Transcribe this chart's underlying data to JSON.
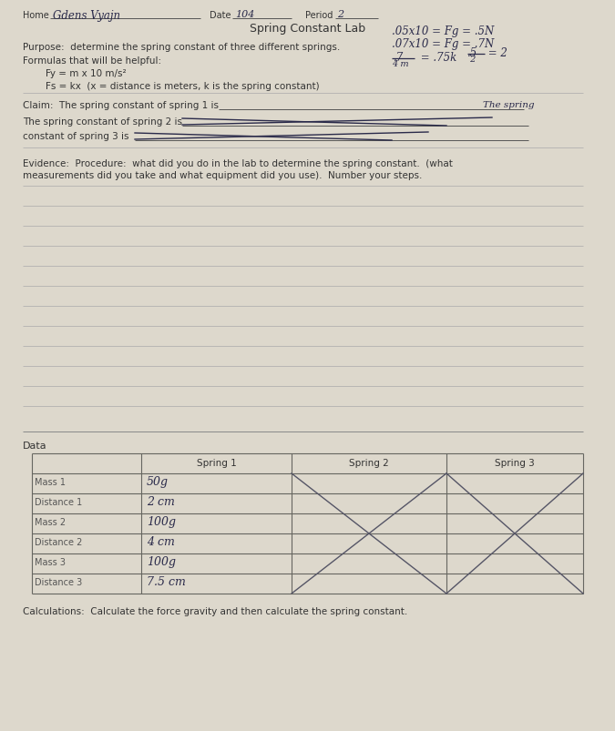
{
  "bg_color": "#ddd8cc",
  "title": "Spring Constant Lab",
  "hw_name": "Gdens Vyajn",
  "hw_date": "104",
  "hw_period": "2",
  "purpose_text": "Purpose:  determine the spring constant of three different springs.",
  "formulas_label": "Formulas that will be helpful:",
  "formula1": "Fy = m x 10 m/s²",
  "formula2": "Fs = kx  (x = distance is meters, k is the spring constant)",
  "claim_line1": "Claim:  The spring constant of spring 1 is",
  "claim_line1_end": "The spring",
  "claim_line2": "The spring constant of spring 2 is",
  "claim_line3": "constant of spring 3 is",
  "evidence_text1": "Evidence:  Procedure:  what did you do in the lab to determine the spring constant.  (what",
  "evidence_text2": "measurements did you take and what equipment did you use).  Number your steps.",
  "num_evidence_lines": 12,
  "data_label": "Data",
  "table_row_labels": [
    "",
    "Mass 1",
    "Distance 1",
    "Mass 2",
    "Distance 2",
    "Mass 3",
    "Distance 3"
  ],
  "table_col_headers": [
    "Spring 1",
    "Spring 2",
    "Spring 3"
  ],
  "spring1_data": [
    "50g",
    "2 cm",
    "100g",
    "4 cm",
    "100g",
    "7.5 cm"
  ],
  "calculations_text": "Calculations:  Calculate the force gravity and then calculate the spring constant.",
  "line_color": "#999990",
  "dark_line_color": "#666660",
  "text_color": "#333333",
  "hw_color": "#2a2a4a",
  "label_color": "#555555"
}
